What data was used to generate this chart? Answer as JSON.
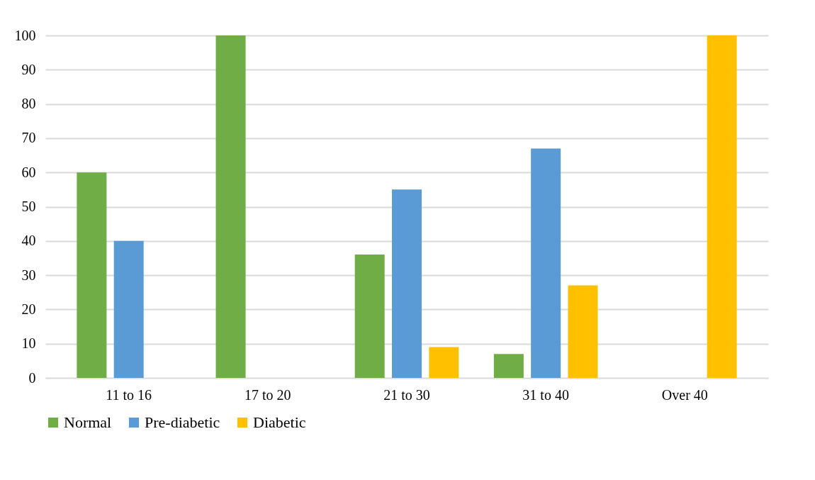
{
  "chart_data": {
    "type": "bar",
    "categories": [
      "11 to 16",
      "17 to 20",
      "21 to 30",
      "31 to 40",
      "Over 40"
    ],
    "series": [
      {
        "name": "Normal",
        "color": "#70ad47",
        "values": [
          60,
          100,
          36,
          7,
          0
        ]
      },
      {
        "name": "Pre-diabetic",
        "color": "#5b9bd5",
        "values": [
          40,
          0,
          55,
          67,
          0
        ]
      },
      {
        "name": "Diabetic",
        "color": "#ffc000",
        "values": [
          0,
          0,
          9,
          27,
          100
        ]
      }
    ],
    "ylim": [
      0,
      100
    ],
    "yticks": [
      0,
      10,
      20,
      30,
      40,
      50,
      60,
      70,
      80,
      90,
      100
    ],
    "grid": "y",
    "legend": "bottom"
  }
}
